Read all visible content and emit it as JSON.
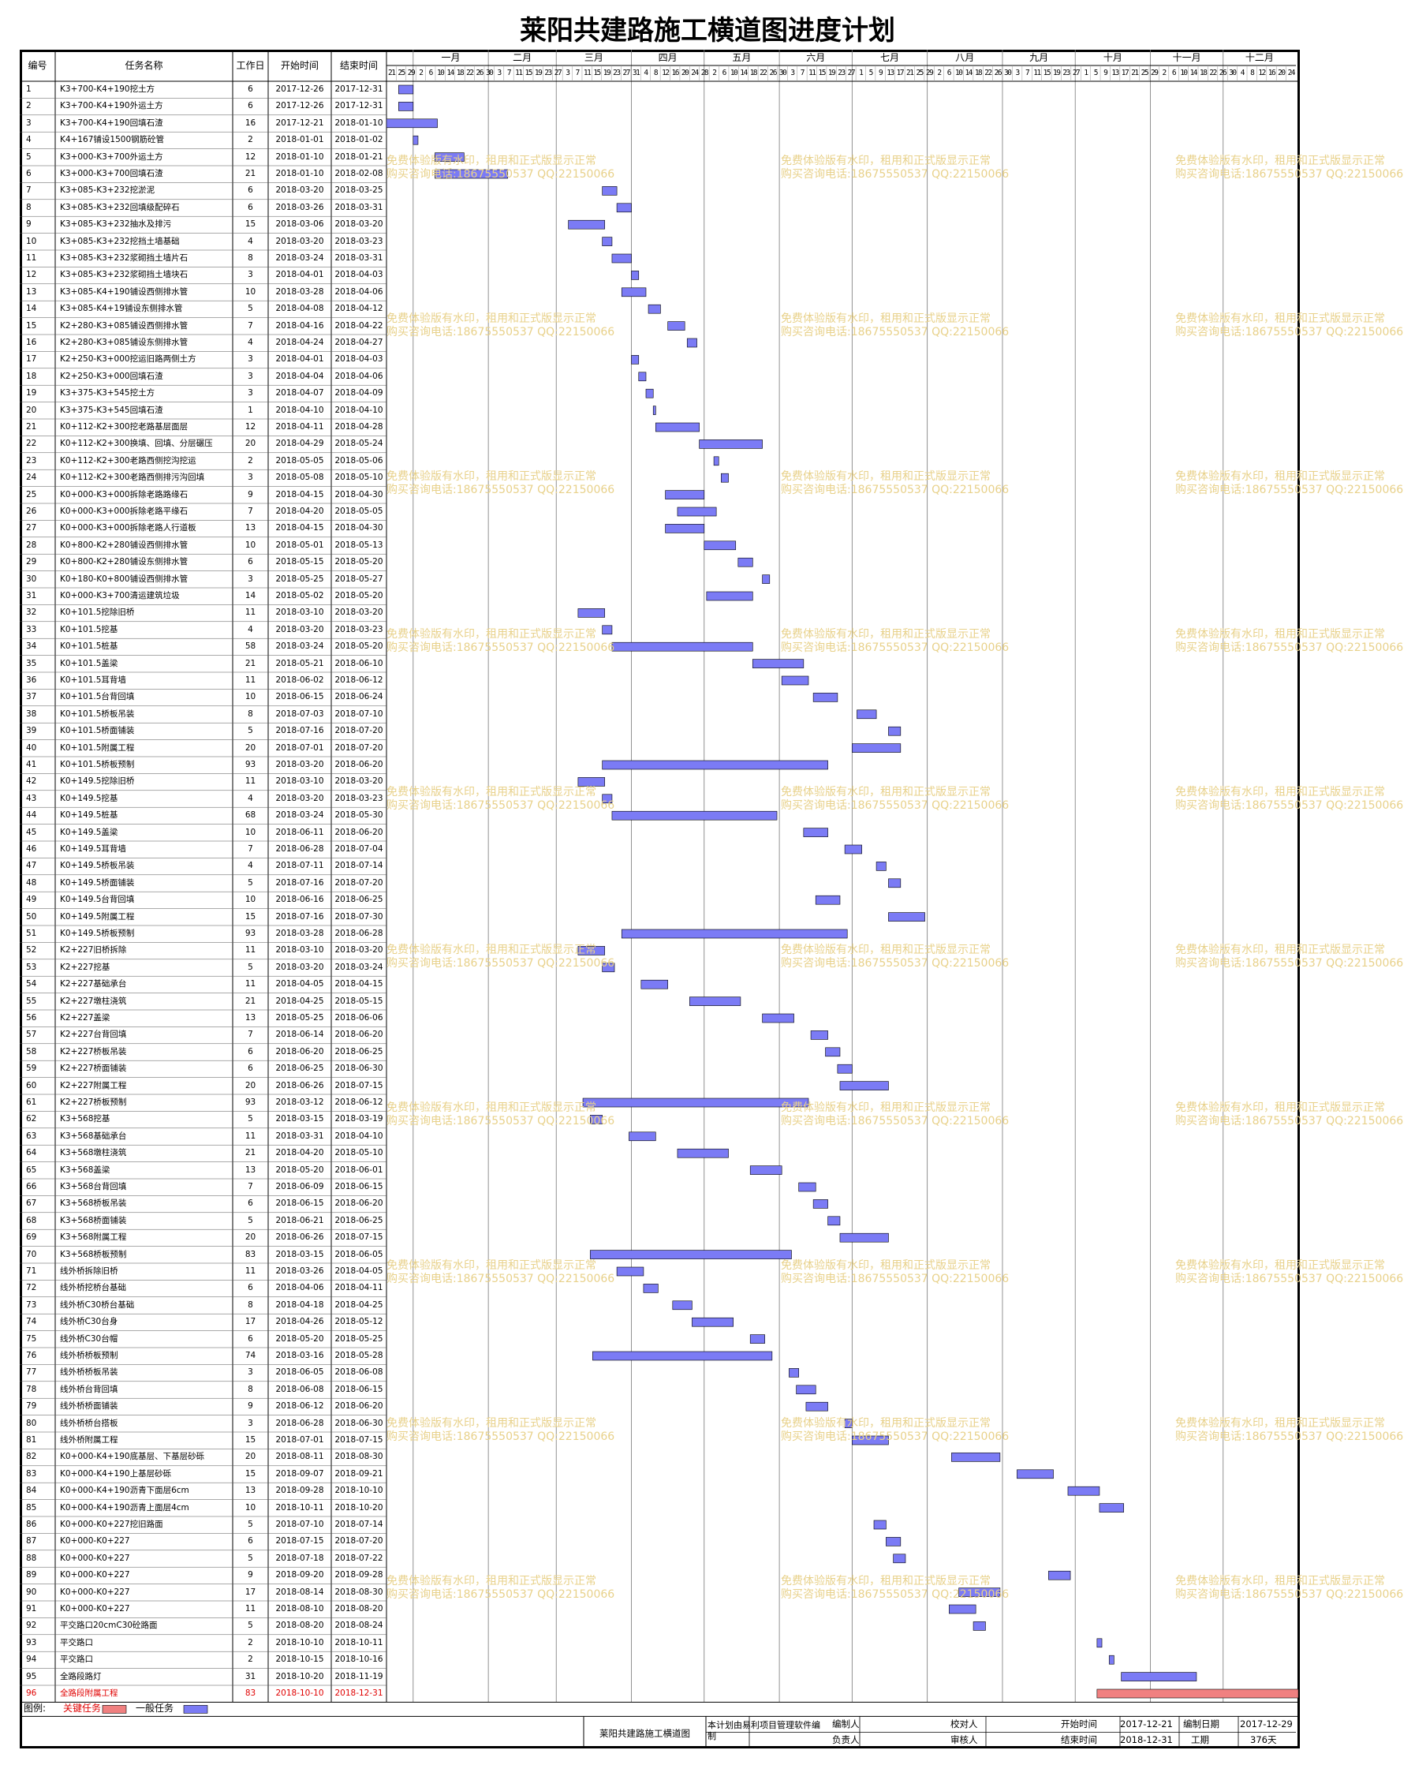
{
  "chart_data": {
    "type": "gantt",
    "title": "莱阳共建路施工横道图进度计划",
    "columns": [
      "编号",
      "任务名称",
      "工作日",
      "开始时间",
      "结束时间"
    ],
    "months": [
      "一月",
      "二月",
      "三月",
      "四月",
      "五月",
      "六月",
      "七月",
      "八月",
      "九月",
      "十月",
      "十一月",
      "十二月"
    ],
    "ticks": [
      "21",
      "25",
      "29",
      "2",
      "6",
      "10",
      "14",
      "18",
      "22",
      "26",
      "30",
      "3",
      "7",
      "11",
      "15",
      "19",
      "23",
      "27",
      "3",
      "7",
      "11",
      "15",
      "19",
      "23",
      "27",
      "31",
      "4",
      "8",
      "12",
      "16",
      "20",
      "24",
      "28",
      "2",
      "6",
      "10",
      "14",
      "18",
      "22",
      "26",
      "30",
      "3",
      "7",
      "11",
      "15",
      "19",
      "23",
      "27",
      "1",
      "5",
      "9",
      "13",
      "17",
      "21",
      "25",
      "29",
      "2",
      "6",
      "10",
      "14",
      "18",
      "22",
      "26",
      "30",
      "3",
      "7",
      "11",
      "15",
      "19",
      "23",
      "27",
      "1",
      "5",
      "9",
      "13",
      "17",
      "21",
      "25",
      "29",
      "2",
      "6",
      "10",
      "14",
      "18",
      "22",
      "26",
      "30",
      "4",
      "8",
      "12",
      "16",
      "20",
      "24"
    ],
    "axis_start": "2017-12-21",
    "axis_end": "2018-12-31",
    "tasks": [
      {
        "id": "1",
        "name": "K3+700-K4+190挖土方",
        "dur": "6",
        "start": "2017-12-26",
        "end": "2017-12-31"
      },
      {
        "id": "2",
        "name": "K3+700-K4+190外运土方",
        "dur": "6",
        "start": "2017-12-26",
        "end": "2017-12-31"
      },
      {
        "id": "3",
        "name": "K3+700-K4+190回填石渣",
        "dur": "16",
        "start": "2017-12-21",
        "end": "2018-01-10"
      },
      {
        "id": "4",
        "name": "K4+167铺设1500钢筋砼管",
        "dur": "2",
        "start": "2018-01-01",
        "end": "2018-01-02"
      },
      {
        "id": "5",
        "name": "K3+000-K3+700外运土方",
        "dur": "12",
        "start": "2018-01-10",
        "end": "2018-01-21"
      },
      {
        "id": "6",
        "name": "K3+000-K3+700回填石渣",
        "dur": "21",
        "start": "2018-01-10",
        "end": "2018-02-08"
      },
      {
        "id": "7",
        "name": "K3+085-K3+232挖淤泥",
        "dur": "6",
        "start": "2018-03-20",
        "end": "2018-03-25"
      },
      {
        "id": "8",
        "name": "K3+085-K3+232回填级配碎石",
        "dur": "6",
        "start": "2018-03-26",
        "end": "2018-03-31"
      },
      {
        "id": "9",
        "name": "K3+085-K3+232抽水及排污",
        "dur": "15",
        "start": "2018-03-06",
        "end": "2018-03-20"
      },
      {
        "id": "10",
        "name": "K3+085-K3+232挖挡土墙基础",
        "dur": "4",
        "start": "2018-03-20",
        "end": "2018-03-23"
      },
      {
        "id": "11",
        "name": "K3+085-K3+232浆砌挡土墙片石",
        "dur": "8",
        "start": "2018-03-24",
        "end": "2018-03-31"
      },
      {
        "id": "12",
        "name": "K3+085-K3+232浆砌挡土墙块石",
        "dur": "3",
        "start": "2018-04-01",
        "end": "2018-04-03"
      },
      {
        "id": "13",
        "name": "K3+085-K4+190铺设西侧排水管",
        "dur": "10",
        "start": "2018-03-28",
        "end": "2018-04-06"
      },
      {
        "id": "14",
        "name": "K3+085-K4+19铺设东侧排水管",
        "dur": "5",
        "start": "2018-04-08",
        "end": "2018-04-12"
      },
      {
        "id": "15",
        "name": "K2+280-K3+085铺设西侧排水管",
        "dur": "7",
        "start": "2018-04-16",
        "end": "2018-04-22"
      },
      {
        "id": "16",
        "name": "K2+280-K3+085铺设东侧排水管",
        "dur": "4",
        "start": "2018-04-24",
        "end": "2018-04-27"
      },
      {
        "id": "17",
        "name": "K2+250-K3+000挖运旧路两侧土方",
        "dur": "3",
        "start": "2018-04-01",
        "end": "2018-04-03"
      },
      {
        "id": "18",
        "name": "K2+250-K3+000回填石渣",
        "dur": "3",
        "start": "2018-04-04",
        "end": "2018-04-06"
      },
      {
        "id": "19",
        "name": "K3+375-K3+545挖土方",
        "dur": "3",
        "start": "2018-04-07",
        "end": "2018-04-09"
      },
      {
        "id": "20",
        "name": "K3+375-K3+545回填石渣",
        "dur": "1",
        "start": "2018-04-10",
        "end": "2018-04-10"
      },
      {
        "id": "21",
        "name": "K0+112-K2+300挖老路基层面层",
        "dur": "12",
        "start": "2018-04-11",
        "end": "2018-04-28"
      },
      {
        "id": "22",
        "name": "K0+112-K2+300换填、回填、分层碾压",
        "dur": "20",
        "start": "2018-04-29",
        "end": "2018-05-24"
      },
      {
        "id": "23",
        "name": "K0+112-K2+300老路西侧挖沟挖运",
        "dur": "2",
        "start": "2018-05-05",
        "end": "2018-05-06"
      },
      {
        "id": "24",
        "name": "K0+112-K2+300老路西侧排污沟回填",
        "dur": "3",
        "start": "2018-05-08",
        "end": "2018-05-10"
      },
      {
        "id": "25",
        "name": "K0+000-K3+000拆除老路路缘石",
        "dur": "9",
        "start": "2018-04-15",
        "end": "2018-04-30"
      },
      {
        "id": "26",
        "name": "K0+000-K3+000拆除老路平缘石",
        "dur": "7",
        "start": "2018-04-20",
        "end": "2018-05-05"
      },
      {
        "id": "27",
        "name": "K0+000-K3+000拆除老路人行道板",
        "dur": "13",
        "start": "2018-04-15",
        "end": "2018-04-30"
      },
      {
        "id": "28",
        "name": "K0+800-K2+280铺设西侧排水管",
        "dur": "10",
        "start": "2018-05-01",
        "end": "2018-05-13"
      },
      {
        "id": "29",
        "name": "K0+800-K2+280铺设东侧排水管",
        "dur": "6",
        "start": "2018-05-15",
        "end": "2018-05-20"
      },
      {
        "id": "30",
        "name": "K0+180-K0+800铺设西侧排水管",
        "dur": "3",
        "start": "2018-05-25",
        "end": "2018-05-27"
      },
      {
        "id": "31",
        "name": "K0+000-K3+700清运建筑垃圾",
        "dur": "14",
        "start": "2018-05-02",
        "end": "2018-05-20"
      },
      {
        "id": "32",
        "name": "K0+101.5挖除旧桥",
        "dur": "11",
        "start": "2018-03-10",
        "end": "2018-03-20"
      },
      {
        "id": "33",
        "name": "K0+101.5挖基",
        "dur": "4",
        "start": "2018-03-20",
        "end": "2018-03-23"
      },
      {
        "id": "34",
        "name": "K0+101.5桩基",
        "dur": "58",
        "start": "2018-03-24",
        "end": "2018-05-20"
      },
      {
        "id": "35",
        "name": "K0+101.5盖梁",
        "dur": "21",
        "start": "2018-05-21",
        "end": "2018-06-10"
      },
      {
        "id": "36",
        "name": "K0+101.5耳背墙",
        "dur": "11",
        "start": "2018-06-02",
        "end": "2018-06-12"
      },
      {
        "id": "37",
        "name": "K0+101.5台背回填",
        "dur": "10",
        "start": "2018-06-15",
        "end": "2018-06-24"
      },
      {
        "id": "38",
        "name": "K0+101.5桥板吊装",
        "dur": "8",
        "start": "2018-07-03",
        "end": "2018-07-10"
      },
      {
        "id": "39",
        "name": "K0+101.5桥面铺装",
        "dur": "5",
        "start": "2018-07-16",
        "end": "2018-07-20"
      },
      {
        "id": "40",
        "name": "K0+101.5附属工程",
        "dur": "20",
        "start": "2018-07-01",
        "end": "2018-07-20"
      },
      {
        "id": "41",
        "name": "K0+101.5桥板预制",
        "dur": "93",
        "start": "2018-03-20",
        "end": "2018-06-20"
      },
      {
        "id": "42",
        "name": "K0+149.5挖除旧桥",
        "dur": "11",
        "start": "2018-03-10",
        "end": "2018-03-20"
      },
      {
        "id": "43",
        "name": "K0+149.5挖基",
        "dur": "4",
        "start": "2018-03-20",
        "end": "2018-03-23"
      },
      {
        "id": "44",
        "name": "K0+149.5桩基",
        "dur": "68",
        "start": "2018-03-24",
        "end": "2018-05-30"
      },
      {
        "id": "45",
        "name": "K0+149.5盖梁",
        "dur": "10",
        "start": "2018-06-11",
        "end": "2018-06-20"
      },
      {
        "id": "46",
        "name": "K0+149.5耳背墙",
        "dur": "7",
        "start": "2018-06-28",
        "end": "2018-07-04"
      },
      {
        "id": "47",
        "name": "K0+149.5桥板吊装",
        "dur": "4",
        "start": "2018-07-11",
        "end": "2018-07-14"
      },
      {
        "id": "48",
        "name": "K0+149.5桥面铺装",
        "dur": "5",
        "start": "2018-07-16",
        "end": "2018-07-20"
      },
      {
        "id": "49",
        "name": "K0+149.5台背回填",
        "dur": "10",
        "start": "2018-06-16",
        "end": "2018-06-25"
      },
      {
        "id": "50",
        "name": "K0+149.5附属工程",
        "dur": "15",
        "start": "2018-07-16",
        "end": "2018-07-30"
      },
      {
        "id": "51",
        "name": "K0+149.5桥板预制",
        "dur": "93",
        "start": "2018-03-28",
        "end": "2018-06-28"
      },
      {
        "id": "52",
        "name": "K2+227旧桥拆除",
        "dur": "11",
        "start": "2018-03-10",
        "end": "2018-03-20"
      },
      {
        "id": "53",
        "name": "K2+227挖基",
        "dur": "5",
        "start": "2018-03-20",
        "end": "2018-03-24"
      },
      {
        "id": "54",
        "name": "K2+227基础承台",
        "dur": "11",
        "start": "2018-04-05",
        "end": "2018-04-15"
      },
      {
        "id": "55",
        "name": "K2+227墩柱浇筑",
        "dur": "21",
        "start": "2018-04-25",
        "end": "2018-05-15"
      },
      {
        "id": "56",
        "name": "K2+227盖梁",
        "dur": "13",
        "start": "2018-05-25",
        "end": "2018-06-06"
      },
      {
        "id": "57",
        "name": "K2+227台背回填",
        "dur": "7",
        "start": "2018-06-14",
        "end": "2018-06-20"
      },
      {
        "id": "58",
        "name": "K2+227桥板吊装",
        "dur": "6",
        "start": "2018-06-20",
        "end": "2018-06-25"
      },
      {
        "id": "59",
        "name": "K2+227桥面铺装",
        "dur": "6",
        "start": "2018-06-25",
        "end": "2018-06-30"
      },
      {
        "id": "60",
        "name": "K2+227附属工程",
        "dur": "20",
        "start": "2018-06-26",
        "end": "2018-07-15"
      },
      {
        "id": "61",
        "name": "K2+227桥板预制",
        "dur": "93",
        "start": "2018-03-12",
        "end": "2018-06-12"
      },
      {
        "id": "62",
        "name": "K3+568挖基",
        "dur": "5",
        "start": "2018-03-15",
        "end": "2018-03-19"
      },
      {
        "id": "63",
        "name": "K3+568基础承台",
        "dur": "11",
        "start": "2018-03-31",
        "end": "2018-04-10"
      },
      {
        "id": "64",
        "name": "K3+568墩柱浇筑",
        "dur": "21",
        "start": "2018-04-20",
        "end": "2018-05-10"
      },
      {
        "id": "65",
        "name": "K3+568盖梁",
        "dur": "13",
        "start": "2018-05-20",
        "end": "2018-06-01"
      },
      {
        "id": "66",
        "name": "K3+568台背回填",
        "dur": "7",
        "start": "2018-06-09",
        "end": "2018-06-15"
      },
      {
        "id": "67",
        "name": "K3+568桥板吊装",
        "dur": "6",
        "start": "2018-06-15",
        "end": "2018-06-20"
      },
      {
        "id": "68",
        "name": "K3+568桥面铺装",
        "dur": "5",
        "start": "2018-06-21",
        "end": "2018-06-25"
      },
      {
        "id": "69",
        "name": "K3+568附属工程",
        "dur": "20",
        "start": "2018-06-26",
        "end": "2018-07-15"
      },
      {
        "id": "70",
        "name": "K3+568桥板预制",
        "dur": "83",
        "start": "2018-03-15",
        "end": "2018-06-05"
      },
      {
        "id": "71",
        "name": "线外桥拆除旧桥",
        "dur": "11",
        "start": "2018-03-26",
        "end": "2018-04-05"
      },
      {
        "id": "72",
        "name": "线外桥挖桥台基础",
        "dur": "6",
        "start": "2018-04-06",
        "end": "2018-04-11"
      },
      {
        "id": "73",
        "name": "线外桥C30桥台基础",
        "dur": "8",
        "start": "2018-04-18",
        "end": "2018-04-25"
      },
      {
        "id": "74",
        "name": "线外桥C30台身",
        "dur": "17",
        "start": "2018-04-26",
        "end": "2018-05-12"
      },
      {
        "id": "75",
        "name": "线外桥C30台帽",
        "dur": "6",
        "start": "2018-05-20",
        "end": "2018-05-25"
      },
      {
        "id": "76",
        "name": "线外桥桥板预制",
        "dur": "74",
        "start": "2018-03-16",
        "end": "2018-05-28"
      },
      {
        "id": "77",
        "name": "线外桥桥板吊装",
        "dur": "3",
        "start": "2018-06-05",
        "end": "2018-06-08"
      },
      {
        "id": "78",
        "name": "线外桥台背回填",
        "dur": "8",
        "start": "2018-06-08",
        "end": "2018-06-15"
      },
      {
        "id": "79",
        "name": "线外桥桥面铺装",
        "dur": "9",
        "start": "2018-06-12",
        "end": "2018-06-20"
      },
      {
        "id": "80",
        "name": "线外桥桥台搭板",
        "dur": "3",
        "start": "2018-06-28",
        "end": "2018-06-30"
      },
      {
        "id": "81",
        "name": "线外桥附属工程",
        "dur": "15",
        "start": "2018-07-01",
        "end": "2018-07-15"
      },
      {
        "id": "82",
        "name": "K0+000-K4+190底基层、下基层砂砾",
        "dur": "20",
        "start": "2018-08-11",
        "end": "2018-08-30"
      },
      {
        "id": "83",
        "name": "K0+000-K4+190上基层砂砾",
        "dur": "15",
        "start": "2018-09-07",
        "end": "2018-09-21"
      },
      {
        "id": "84",
        "name": "K0+000-K4+190沥青下面层6cm",
        "dur": "13",
        "start": "2018-09-28",
        "end": "2018-10-10"
      },
      {
        "id": "85",
        "name": "K0+000-K4+190沥青上面层4cm",
        "dur": "10",
        "start": "2018-10-11",
        "end": "2018-10-20"
      },
      {
        "id": "86",
        "name": "K0+000-K0+227挖旧路面",
        "dur": "5",
        "start": "2018-07-10",
        "end": "2018-07-14"
      },
      {
        "id": "87",
        "name": "K0+000-K0+227",
        "dur": "6",
        "start": "2018-07-15",
        "end": "2018-07-20"
      },
      {
        "id": "88",
        "name": "K0+000-K0+227",
        "dur": "5",
        "start": "2018-07-18",
        "end": "2018-07-22"
      },
      {
        "id": "89",
        "name": "K0+000-K0+227",
        "dur": "9",
        "start": "2018-09-20",
        "end": "2018-09-28"
      },
      {
        "id": "90",
        "name": "K0+000-K0+227",
        "dur": "17",
        "start": "2018-08-14",
        "end": "2018-08-30"
      },
      {
        "id": "91",
        "name": "K0+000-K0+227",
        "dur": "11",
        "start": "2018-08-10",
        "end": "2018-08-20"
      },
      {
        "id": "92",
        "name": "平交路口20cmC30砼路面",
        "dur": "5",
        "start": "2018-08-20",
        "end": "2018-08-24"
      },
      {
        "id": "93",
        "name": "平交路口",
        "dur": "2",
        "start": "2018-10-10",
        "end": "2018-10-11"
      },
      {
        "id": "94",
        "name": "平交路口",
        "dur": "2",
        "start": "2018-10-15",
        "end": "2018-10-16"
      },
      {
        "id": "95",
        "name": "全路段路灯",
        "dur": "31",
        "start": "2018-10-20",
        "end": "2018-11-19"
      },
      {
        "id": "96",
        "name": "全路段附属工程",
        "dur": "83",
        "start": "2018-10-10",
        "end": "2018-12-31",
        "critical": true
      }
    ],
    "colors": {
      "normal": "#7b7bf5",
      "critical": "#f08080",
      "critical_text": "#e00000",
      "watermark": "#e8d18a"
    }
  },
  "legend": {
    "label": "图例:",
    "critical": "关键任务",
    "normal": "一般任务"
  },
  "footer": {
    "project": "莱阳共建路施工横道图",
    "software": "本计划由易利项目管理软件编制",
    "editor": "编制人",
    "checker": "校对人",
    "start_label": "开始时间",
    "start": "2017-12-21",
    "date_label": "编制日期",
    "date": "2017-12-29",
    "owner": "负责人",
    "reviewer": "审核人",
    "end_label": "结束时间",
    "end": "2018-12-31",
    "period_label": "工期",
    "period": "376天"
  },
  "watermark": {
    "line1": "免费体验版有水印，租用和正式版显示正常",
    "line2": "购买咨询电话:18675550537 QQ:22150066"
  }
}
